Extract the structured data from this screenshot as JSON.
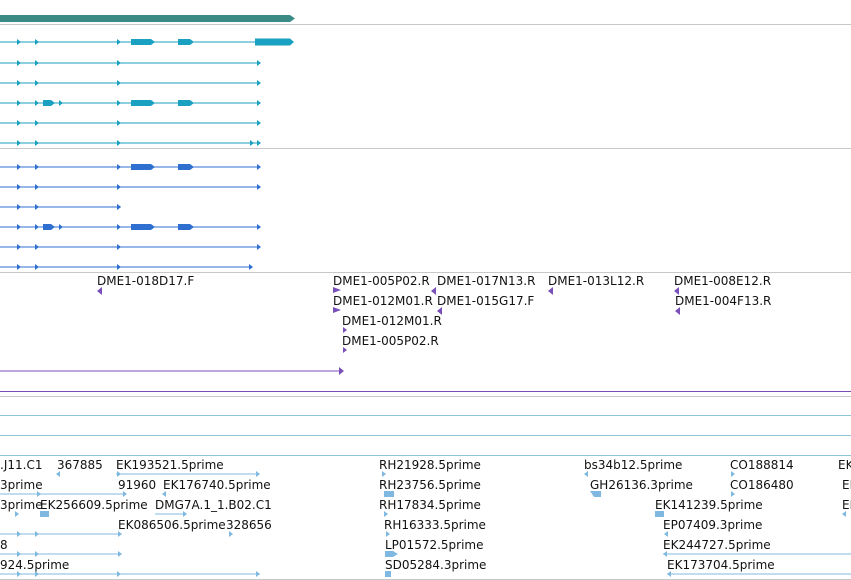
{
  "colors": {
    "background": "#ffffff",
    "scaffold_bar": "#3a8a85",
    "transcript_teal": "#1aa0c0",
    "transcript_blue": "#2e6fd0",
    "bac_purple": "#7a50b8",
    "est_lightblue": "#7fb8e0",
    "separator": "#c8c8c8",
    "track_line_cyan": "#8cc6d6"
  },
  "icons": [
    "arrow-right-icon",
    "arrow-left-icon"
  ],
  "bac_labels": [
    "DME1-018D17.F",
    "DME1-005P02.R",
    "DME1-017N13.R",
    "DME1-013L12.R",
    "DME1-008E12.R",
    "DME1-012M01.R",
    "DME1-015G17.F",
    "DME1-004F13.R",
    "DME1-012M01.R",
    "DME1-005P02.R"
  ],
  "est_labels": [
    ".J11.C1",
    "367885",
    "EK193521.5prime",
    "RH21928.5prime",
    "bs34b12.5prime",
    "CO188814",
    "EK",
    "3prime",
    "91960",
    "EK176740.5prime",
    "RH23756.5prime",
    "GH26136.3prime",
    "CO186480",
    "EI",
    "3prime",
    "EK256609.5prime",
    "DMG7A.1_1.B02.C1",
    "RH17834.5prime",
    "EK141239.5prime",
    "EI",
    "EK086506.5prime",
    "328656",
    "RH16333.5prime",
    "EP07409.3prime",
    "8",
    "LP01572.5prime",
    "EK244727.5prime",
    "924.5prime",
    "SD05284.3prime",
    "EK173704.5prime"
  ]
}
